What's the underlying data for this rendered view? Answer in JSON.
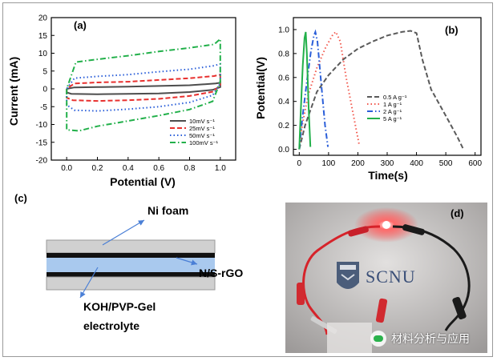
{
  "panels": {
    "a": "(a)",
    "b": "(b)",
    "c": "(c)",
    "d": "(d)"
  },
  "diagram": {
    "label_top": "Ni foam",
    "label_right": "N/S-rGO",
    "label_bottom_line1": "KOH/PVP-Gel",
    "label_bottom_line2": "electrolyte"
  },
  "photo": {
    "logo_text": "SCNU"
  },
  "watermark": {
    "text": "材料分析与应用",
    "icon": "wechat-icon"
  },
  "chart_data": [
    {
      "type": "line",
      "panel": "(a)",
      "xlabel": "Potential (V)",
      "ylabel": "Current (mA)",
      "xlim": [
        -0.1,
        1.1
      ],
      "ylim": [
        -20,
        20
      ],
      "xticks": [
        "0.0",
        "0.2",
        "0.4",
        "0.6",
        "0.8",
        "1.0"
      ],
      "yticks": [
        "-20",
        "-15",
        "-10",
        "-5",
        "0",
        "5",
        "10",
        "15",
        "20"
      ],
      "legend_position": "bottom-right",
      "series": [
        {
          "name": "10mV s⁻¹",
          "color": "#4d4d4d",
          "dash": "solid",
          "x": [
            0.0,
            0.0,
            0.03,
            0.2,
            0.4,
            0.6,
            0.8,
            0.95,
            1.0,
            1.0,
            0.97,
            0.8,
            0.6,
            0.4,
            0.2,
            0.05,
            0.0
          ],
          "y": [
            0,
            -1.0,
            -1.4,
            -1.5,
            -1.4,
            -1.3,
            -0.9,
            -0.3,
            0.5,
            1.7,
            1.5,
            1.0,
            0.8,
            0.6,
            0.5,
            0.4,
            0
          ]
        },
        {
          "name": "25mV s⁻¹",
          "color": "#e8302e",
          "dash": "dashed",
          "x": [
            0.0,
            0.0,
            0.04,
            0.2,
            0.4,
            0.6,
            0.8,
            0.95,
            1.0,
            1.0,
            0.96,
            0.8,
            0.6,
            0.4,
            0.2,
            0.05,
            0.0
          ],
          "y": [
            0,
            -2.5,
            -3.2,
            -3.4,
            -3.2,
            -2.8,
            -2.0,
            -0.8,
            1.0,
            4.0,
            3.6,
            3.0,
            2.5,
            2.0,
            1.8,
            1.5,
            0
          ]
        },
        {
          "name": "50mV s⁻¹",
          "color": "#2b5fd9",
          "dash": "dotted",
          "x": [
            0.0,
            0.0,
            0.05,
            0.2,
            0.4,
            0.6,
            0.8,
            0.95,
            1.0,
            1.0,
            0.96,
            0.8,
            0.6,
            0.4,
            0.2,
            0.05,
            0.0
          ],
          "y": [
            0,
            -4.5,
            -6.0,
            -6.2,
            -5.7,
            -5.0,
            -3.8,
            -1.8,
            1.5,
            7.0,
            6.5,
            5.5,
            4.8,
            4.0,
            3.5,
            3.0,
            0
          ]
        },
        {
          "name": "100mV s⁻¹",
          "color": "#22b04a",
          "dash": "dashdot",
          "x": [
            0.0,
            0.0,
            0.08,
            0.2,
            0.4,
            0.6,
            0.8,
            0.95,
            1.0,
            1.0,
            0.96,
            0.8,
            0.6,
            0.4,
            0.2,
            0.06,
            0.0
          ],
          "y": [
            0,
            -11.5,
            -11.8,
            -10.5,
            -9.0,
            -7.5,
            -5.8,
            -3.5,
            2.0,
            14.0,
            12.5,
            11.5,
            10.5,
            9.3,
            8.3,
            7.5,
            0
          ]
        }
      ]
    },
    {
      "type": "line",
      "panel": "(b)",
      "xlabel": "Time(s)",
      "ylabel": "Potential(V)",
      "xlim": [
        -20,
        620
      ],
      "ylim": [
        -0.05,
        1.1
      ],
      "xticks": [
        "0",
        "100",
        "200",
        "300",
        "400",
        "500",
        "600"
      ],
      "yticks": [
        "0.0",
        "0.2",
        "0.4",
        "0.6",
        "0.8",
        "1.0"
      ],
      "legend_position": "center-right",
      "series": [
        {
          "name": "0.5 A g⁻¹",
          "color": "#5a5a5a",
          "dash": "dashed",
          "x": [
            0,
            20,
            60,
            100,
            150,
            200,
            250,
            300,
            350,
            380,
            400,
            420,
            450,
            500,
            540,
            560
          ],
          "y": [
            0.0,
            0.2,
            0.48,
            0.62,
            0.75,
            0.84,
            0.9,
            0.95,
            0.98,
            0.99,
            0.97,
            0.75,
            0.5,
            0.28,
            0.1,
            0.0
          ]
        },
        {
          "name": "1 A g⁻¹",
          "color": "#f25a4f",
          "dash": "dotted",
          "x": [
            0,
            10,
            30,
            60,
            90,
            115,
            125,
            140,
            160,
            185,
            205
          ],
          "y": [
            0.0,
            0.2,
            0.45,
            0.68,
            0.85,
            0.96,
            0.98,
            0.9,
            0.6,
            0.28,
            0.03
          ]
        },
        {
          "name": "2 A g⁻¹",
          "color": "#2b5fd9",
          "dash": "dashdot",
          "x": [
            0,
            10,
            25,
            40,
            50,
            55,
            62,
            75,
            88,
            98
          ],
          "y": [
            0.0,
            0.25,
            0.55,
            0.82,
            0.95,
            0.98,
            0.9,
            0.55,
            0.2,
            0.02
          ]
        },
        {
          "name": "5 A g⁻¹",
          "color": "#22b04a",
          "dash": "solid",
          "x": [
            0,
            5,
            12,
            18,
            22,
            26,
            32,
            38
          ],
          "y": [
            0.0,
            0.3,
            0.7,
            0.93,
            0.98,
            0.8,
            0.35,
            0.02
          ]
        }
      ]
    }
  ]
}
